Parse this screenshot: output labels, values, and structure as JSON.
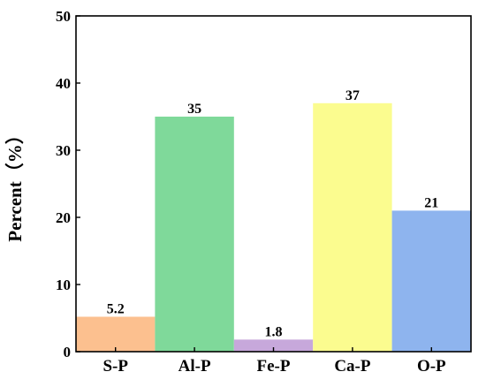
{
  "chart_data": {
    "type": "bar",
    "ylabel": "Percent（%）",
    "xlabel": "",
    "title": "",
    "ylim": [
      0,
      50
    ],
    "yticks": [
      0,
      10,
      20,
      30,
      40,
      50
    ],
    "categories": [
      "S-P",
      "Al-P",
      "Fe-P",
      "Ca-P",
      "O-P"
    ],
    "values": [
      5.2,
      35,
      1.8,
      37,
      21
    ],
    "data_labels": [
      "5.2",
      "35",
      "1.8",
      "37",
      "21"
    ],
    "bar_colors": [
      "#FCC08F",
      "#7FD99A",
      "#C7A8DB",
      "#FBFC8F",
      "#8EB4EE"
    ],
    "grid": false,
    "legend": "none",
    "bar_gap": "none"
  }
}
